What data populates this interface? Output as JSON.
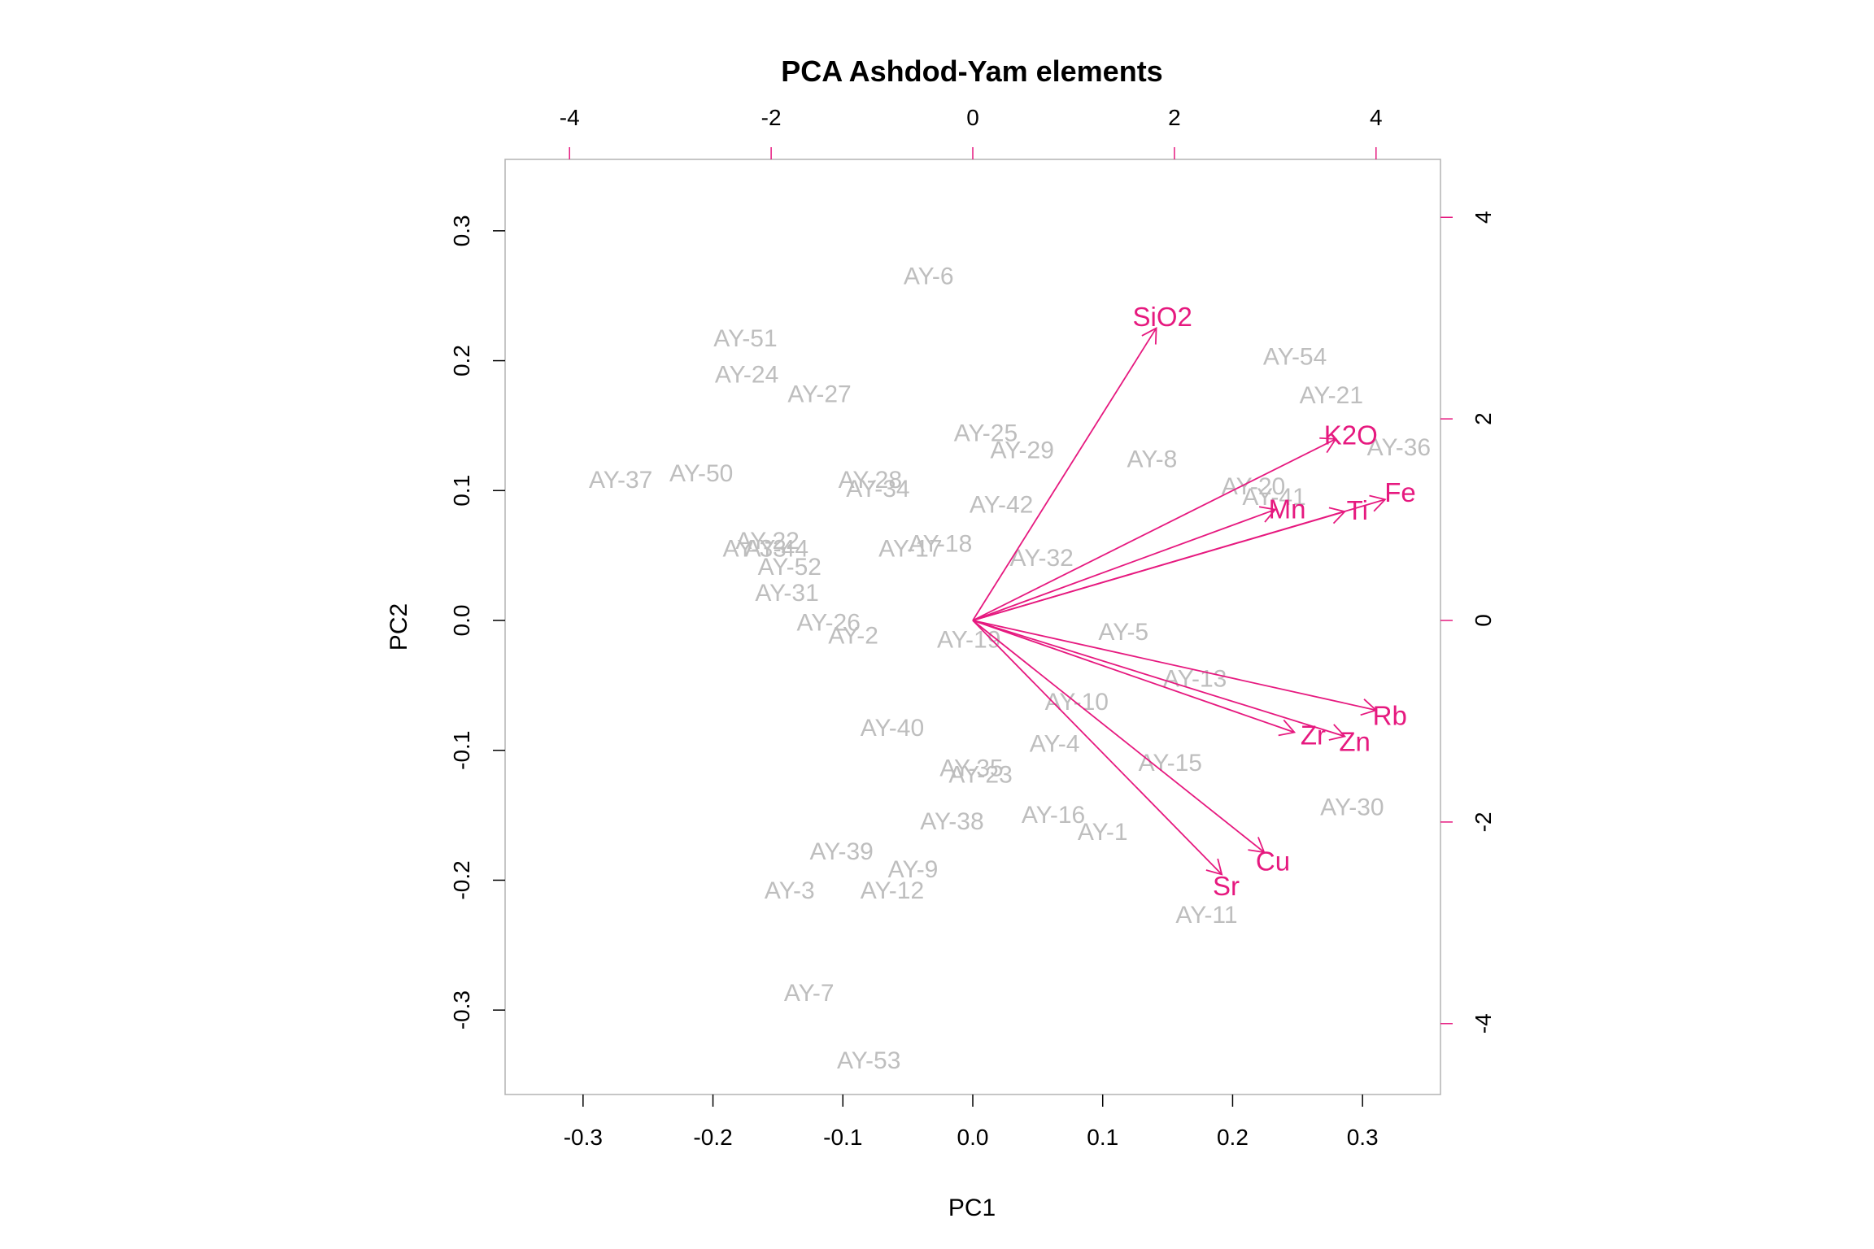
{
  "chart_data": {
    "type": "biplot",
    "title": "PCA Ashdod-Yam elements",
    "xlabel": "PC1",
    "ylabel": "PC2",
    "xlim": [
      -0.36,
      0.36
    ],
    "ylim": [
      -0.365,
      0.355
    ],
    "x_ticks": [
      "-0.3",
      "-0.2",
      "-0.1",
      "0.0",
      "0.1",
      "0.2",
      "0.3"
    ],
    "y_ticks": [
      "-0.3",
      "-0.2",
      "-0.1",
      "0.0",
      "0.1",
      "0.2",
      "0.3"
    ],
    "top_ticks": [
      "-4",
      "-2",
      "0",
      "2",
      "4"
    ],
    "right_ticks": [
      "-4",
      "-2",
      "0",
      "2",
      "4"
    ],
    "loading_scale": 0.0776,
    "observation_color": "#bebebe",
    "variable_color": "#e6197f",
    "observations": [
      {
        "label": "AY-6",
        "x": -0.034,
        "y": 0.264
      },
      {
        "label": "AY-51",
        "x": -0.175,
        "y": 0.216
      },
      {
        "label": "AY-24",
        "x": -0.174,
        "y": 0.188
      },
      {
        "label": "AY-27",
        "x": -0.118,
        "y": 0.173
      },
      {
        "label": "AY-54",
        "x": 0.248,
        "y": 0.202
      },
      {
        "label": "AY-21",
        "x": 0.276,
        "y": 0.172
      },
      {
        "label": "AY-36",
        "x": 0.328,
        "y": 0.132
      },
      {
        "label": "AY-25",
        "x": 0.01,
        "y": 0.143
      },
      {
        "label": "AY-29",
        "x": 0.038,
        "y": 0.13
      },
      {
        "label": "AY-8",
        "x": 0.138,
        "y": 0.123
      },
      {
        "label": "AY-37",
        "x": -0.271,
        "y": 0.107
      },
      {
        "label": "AY-50",
        "x": -0.209,
        "y": 0.112
      },
      {
        "label": "AY-28",
        "x": -0.079,
        "y": 0.107
      },
      {
        "label": "AY-34",
        "x": -0.073,
        "y": 0.1
      },
      {
        "label": "AY-20",
        "x": 0.216,
        "y": 0.102
      },
      {
        "label": "AY-41",
        "x": 0.232,
        "y": 0.094
      },
      {
        "label": "AY-42",
        "x": 0.022,
        "y": 0.088
      },
      {
        "label": "AY-22",
        "x": -0.158,
        "y": 0.06
      },
      {
        "label": "AY-33",
        "x": -0.168,
        "y": 0.054
      },
      {
        "label": "AY-44",
        "x": -0.151,
        "y": 0.054
      },
      {
        "label": "AY-18",
        "x": -0.025,
        "y": 0.058
      },
      {
        "label": "AY-17",
        "x": -0.048,
        "y": 0.054
      },
      {
        "label": "AY-52",
        "x": -0.141,
        "y": 0.04
      },
      {
        "label": "AY-32",
        "x": 0.053,
        "y": 0.047
      },
      {
        "label": "AY-31",
        "x": -0.143,
        "y": 0.02
      },
      {
        "label": "AY-26",
        "x": -0.111,
        "y": -0.003
      },
      {
        "label": "AY-2",
        "x": -0.092,
        "y": -0.013
      },
      {
        "label": "AY-19",
        "x": -0.003,
        "y": -0.016
      },
      {
        "label": "AY-5",
        "x": 0.116,
        "y": -0.01
      },
      {
        "label": "AY-13",
        "x": 0.171,
        "y": -0.046
      },
      {
        "label": "AY-10",
        "x": 0.08,
        "y": -0.064
      },
      {
        "label": "AY-40",
        "x": -0.062,
        "y": -0.084
      },
      {
        "label": "AY-4",
        "x": 0.063,
        "y": -0.096
      },
      {
        "label": "AY-15",
        "x": 0.152,
        "y": -0.111
      },
      {
        "label": "AY-35",
        "x": -0.001,
        "y": -0.115
      },
      {
        "label": "AY-23",
        "x": 0.006,
        "y": -0.12
      },
      {
        "label": "AY-30",
        "x": 0.292,
        "y": -0.145
      },
      {
        "label": "AY-16",
        "x": 0.062,
        "y": -0.151
      },
      {
        "label": "AY-38",
        "x": -0.016,
        "y": -0.156
      },
      {
        "label": "AY-1",
        "x": 0.1,
        "y": -0.164
      },
      {
        "label": "AY-39",
        "x": -0.101,
        "y": -0.179
      },
      {
        "label": "AY-9",
        "x": -0.046,
        "y": -0.193
      },
      {
        "label": "AY-3",
        "x": -0.141,
        "y": -0.209
      },
      {
        "label": "AY-12",
        "x": -0.062,
        "y": -0.209
      },
      {
        "label": "AY-11",
        "x": 0.18,
        "y": -0.228
      },
      {
        "label": "AY-7",
        "x": -0.126,
        "y": -0.288
      },
      {
        "label": "AY-53",
        "x": -0.08,
        "y": -0.34
      }
    ],
    "variables": [
      {
        "label": "SiO2",
        "x": 1.82,
        "y": 2.9,
        "lx": 0.146,
        "ly": 0.232
      },
      {
        "label": "K2O",
        "x": 3.6,
        "y": 1.8,
        "lx": 0.291,
        "ly": 0.141
      },
      {
        "label": "Fe",
        "x": 4.09,
        "y": 1.2,
        "lx": 0.329,
        "ly": 0.097
      },
      {
        "label": "Mn",
        "x": 3.0,
        "y": 1.1,
        "lx": 0.242,
        "ly": 0.084
      },
      {
        "label": "Ti",
        "x": 3.69,
        "y": 1.08,
        "lx": 0.296,
        "ly": 0.083
      },
      {
        "label": "Rb",
        "x": 4.0,
        "y": -0.89,
        "lx": 0.321,
        "ly": -0.075
      },
      {
        "label": "Zr",
        "x": 3.19,
        "y": -1.11,
        "lx": 0.262,
        "ly": -0.09
      },
      {
        "label": "Zn",
        "x": 3.69,
        "y": -1.15,
        "lx": 0.294,
        "ly": -0.095
      },
      {
        "label": "Cu",
        "x": 2.89,
        "y": -2.3,
        "lx": 0.231,
        "ly": -0.187
      },
      {
        "label": "Sr",
        "x": 2.47,
        "y": -2.52,
        "lx": 0.195,
        "ly": -0.206
      }
    ]
  }
}
